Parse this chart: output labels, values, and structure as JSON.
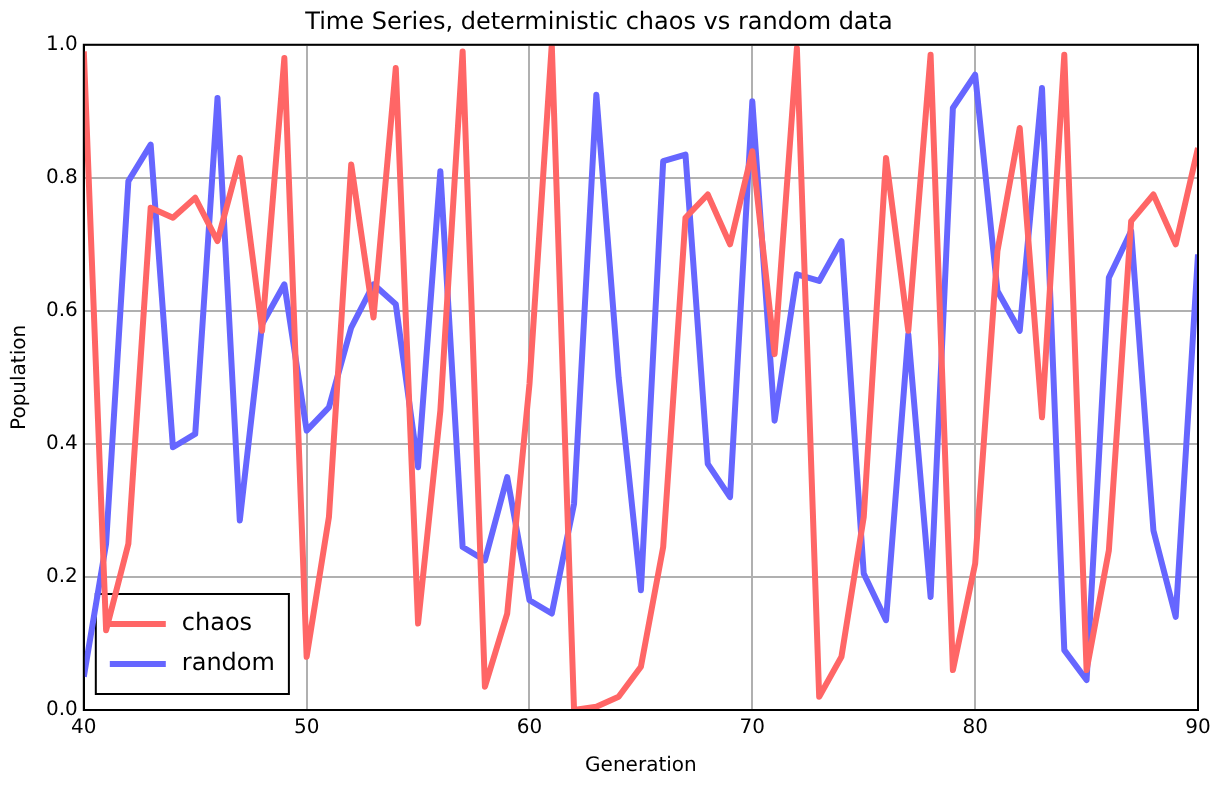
{
  "chart_data": {
    "type": "line",
    "title": "Time Series, deterministic chaos vs random data",
    "xlabel": "Generation",
    "ylabel": "Population",
    "x": [
      40,
      41,
      42,
      43,
      44,
      45,
      46,
      47,
      48,
      49,
      50,
      51,
      52,
      53,
      54,
      55,
      56,
      57,
      58,
      59,
      60,
      61,
      62,
      63,
      64,
      65,
      66,
      67,
      68,
      69,
      70,
      71,
      72,
      73,
      74,
      75,
      76,
      77,
      78,
      79,
      80,
      81,
      82,
      83,
      84,
      85,
      86,
      87,
      88,
      89,
      90
    ],
    "series": [
      {
        "name": "chaos",
        "color": "#ff6666",
        "values": [
          0.99,
          0.12,
          0.25,
          0.755,
          0.74,
          0.77,
          0.705,
          0.83,
          0.57,
          0.98,
          0.08,
          0.29,
          0.82,
          0.59,
          0.965,
          0.13,
          0.45,
          0.99,
          0.035,
          0.145,
          0.49,
          1.0,
          0.0,
          0.005,
          0.02,
          0.065,
          0.245,
          0.74,
          0.775,
          0.7,
          0.84,
          0.535,
          0.995,
          0.02,
          0.08,
          0.29,
          0.83,
          0.57,
          0.985,
          0.06,
          0.22,
          0.69,
          0.875,
          0.44,
          0.985,
          0.06,
          0.24,
          0.735,
          0.775,
          0.7,
          0.845
        ]
      },
      {
        "name": "random",
        "color": "#6666ff",
        "values": [
          0.05,
          0.25,
          0.795,
          0.85,
          0.395,
          0.415,
          0.92,
          0.285,
          0.58,
          0.64,
          0.42,
          0.455,
          0.575,
          0.64,
          0.61,
          0.365,
          0.81,
          0.245,
          0.225,
          0.35,
          0.165,
          0.145,
          0.31,
          0.925,
          0.5,
          0.18,
          0.825,
          0.835,
          0.37,
          0.32,
          0.915,
          0.435,
          0.655,
          0.645,
          0.705,
          0.205,
          0.135,
          0.565,
          0.17,
          0.905,
          0.955,
          0.63,
          0.57,
          0.935,
          0.09,
          0.045,
          0.65,
          0.72,
          0.27,
          0.14,
          0.685
        ]
      }
    ],
    "xlim": [
      40,
      90
    ],
    "xticks": [
      40,
      50,
      60,
      70,
      80,
      90
    ],
    "ylim": [
      0,
      1
    ],
    "yticks": [
      {
        "value": 0,
        "label": "0.0"
      },
      0.2,
      0.4,
      0.6,
      0.8,
      {
        "value": 1,
        "label": "1.0"
      }
    ],
    "grid": true,
    "legend": "bottom left",
    "marker": "none",
    "line_style": "solid"
  }
}
